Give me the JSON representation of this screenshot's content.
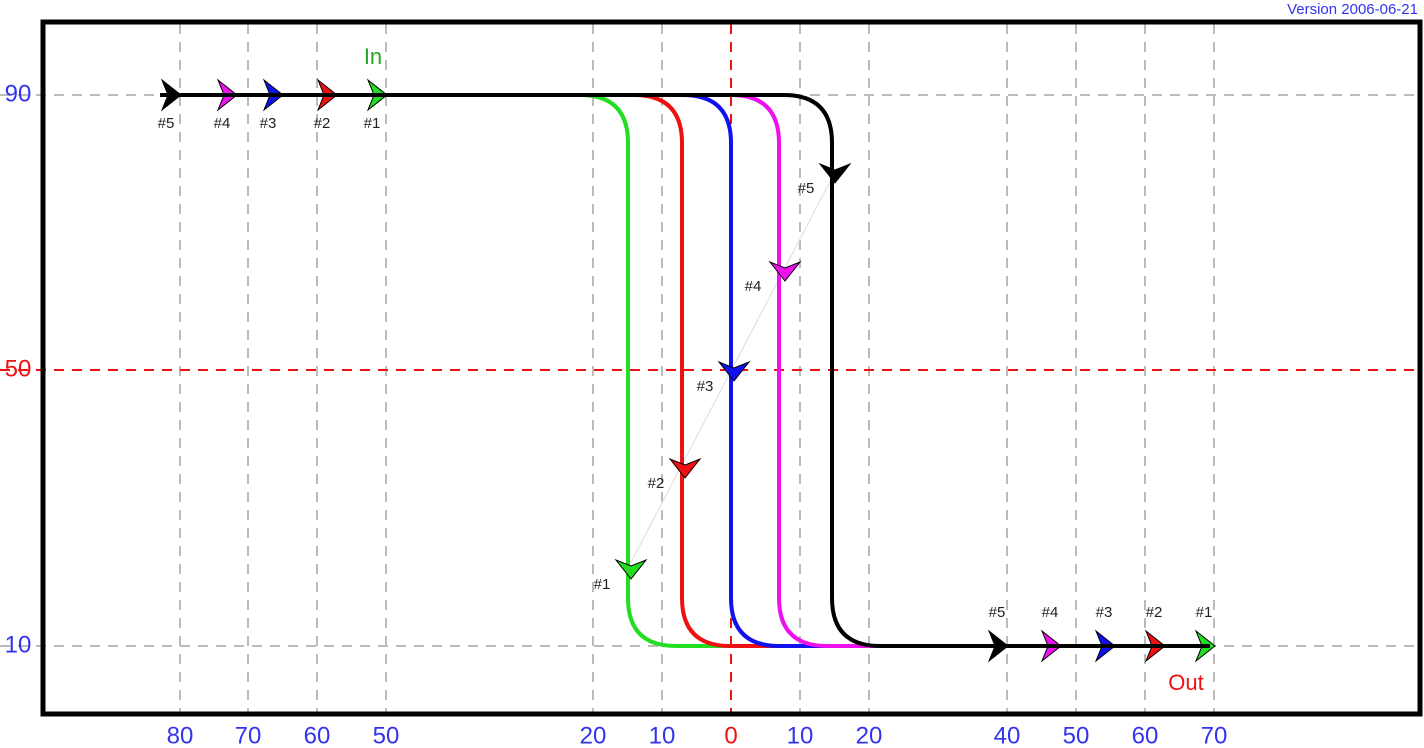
{
  "version": "Version 2006-06-21",
  "labels": {
    "in": "In",
    "out": "Out"
  },
  "y_axis": [
    "90",
    "50",
    "10"
  ],
  "x_axis": [
    "80",
    "70",
    "60",
    "50",
    "20",
    "10",
    "0",
    "10",
    "20",
    "40",
    "50",
    "60",
    "70"
  ],
  "paths": [
    {
      "label": "#1",
      "color": "#22dd22"
    },
    {
      "label": "#2",
      "color": "#ee1111"
    },
    {
      "label": "#3",
      "color": "#1111ee"
    },
    {
      "label": "#4",
      "color": "#ee11ee"
    },
    {
      "label": "#5",
      "color": "#000000"
    }
  ]
}
